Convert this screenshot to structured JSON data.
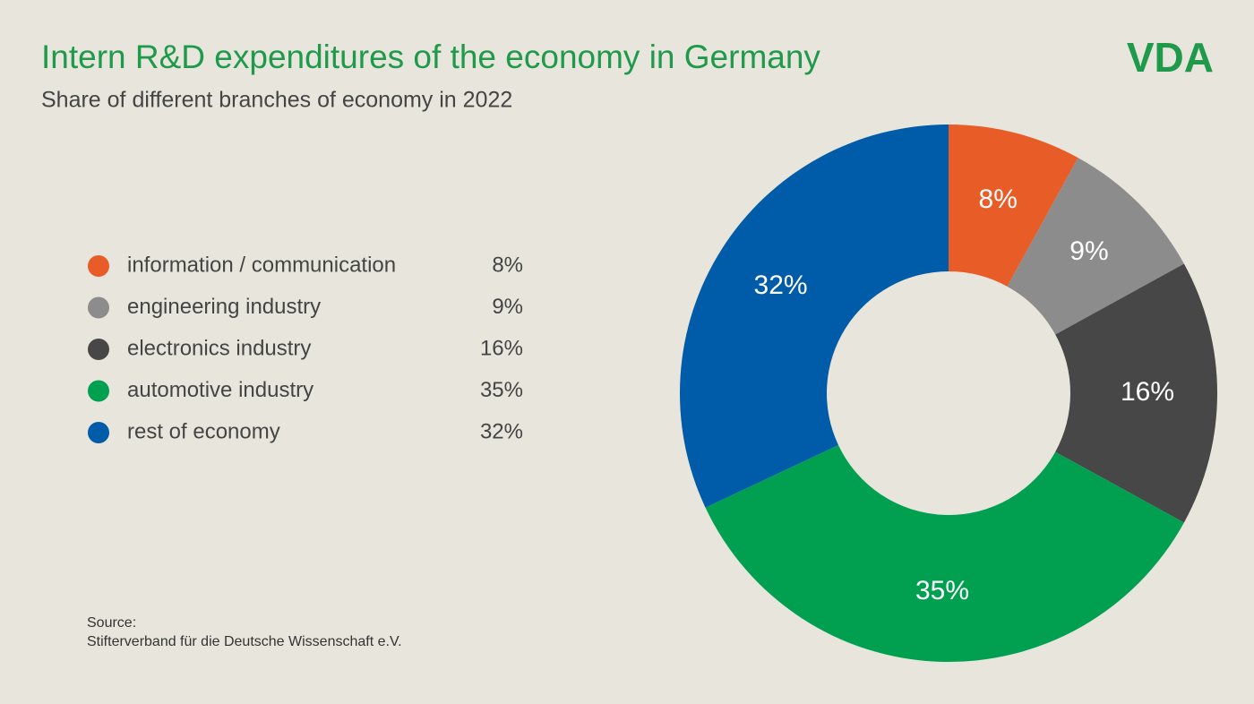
{
  "chart_data": {
    "type": "donut",
    "title": "Intern R&D expenditures of the economy in Germany",
    "subtitle": "Share of different branches of economy in 2022",
    "logo": "VDA",
    "source_label": "Source:",
    "source": "Stifterverband für die Deutsche Wissenschaft e.V.",
    "categories": [
      "information / communication",
      "engineering industry",
      "electronics industry",
      "automotive industry",
      "rest of economy"
    ],
    "values": [
      8,
      9,
      16,
      35,
      32
    ],
    "value_labels": [
      "8%",
      "9%",
      "16%",
      "35%",
      "32%"
    ],
    "colors": [
      "#e85c27",
      "#8c8c8c",
      "#474747",
      "#00a050",
      "#005ba8"
    ],
    "legend": "left"
  }
}
